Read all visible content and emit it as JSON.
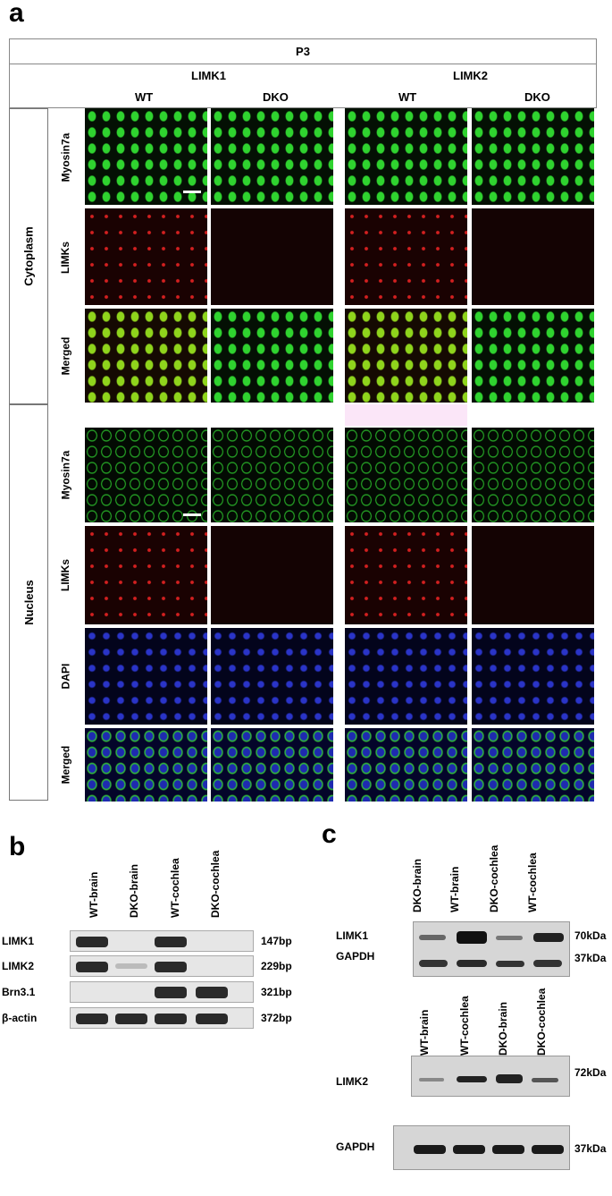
{
  "panel_a": {
    "letter": "a",
    "timepoint": "P3",
    "groups": [
      "LIMK1",
      "LIMK2"
    ],
    "genotypes": [
      "WT",
      "DKO",
      "WT",
      "DKO"
    ],
    "sections": {
      "cytoplasm": {
        "label": "Cytoplasm",
        "rows": [
          "Myosin7a",
          "LIMKs",
          "Merged"
        ]
      },
      "nucleus": {
        "label": "Nucleus",
        "rows": [
          "Myosin7a",
          "LIMKs",
          "DAPI",
          "Merged"
        ]
      }
    }
  },
  "panel_b": {
    "letter": "b",
    "lanes": [
      "WT-brain",
      "DKO-brain",
      "WT-cochlea",
      "DKO-cochlea"
    ],
    "genes": [
      {
        "name": "LIMK1",
        "size": "147bp"
      },
      {
        "name": "LIMK2",
        "size": "229bp"
      },
      {
        "name": "Brn3.1",
        "size": "321bp"
      },
      {
        "name": "β-actin",
        "size": "372bp"
      }
    ]
  },
  "panel_c": {
    "letter": "c",
    "top": {
      "lanes": [
        "DKO-brain",
        "WT-brain",
        "DKO-cochlea",
        "WT-cochlea"
      ],
      "rows": [
        {
          "name": "LIMK1",
          "size": "70kDa"
        },
        {
          "name": "GAPDH",
          "size": "37kDa"
        }
      ]
    },
    "bottom": {
      "lanes": [
        "WT-brain",
        "WT-cochlea",
        "DKO-brain",
        "DKO-cochlea"
      ],
      "rows": [
        {
          "name": "LIMK2",
          "size": "72kDa"
        },
        {
          "name": "GAPDH",
          "size": "37kDa"
        }
      ]
    }
  }
}
